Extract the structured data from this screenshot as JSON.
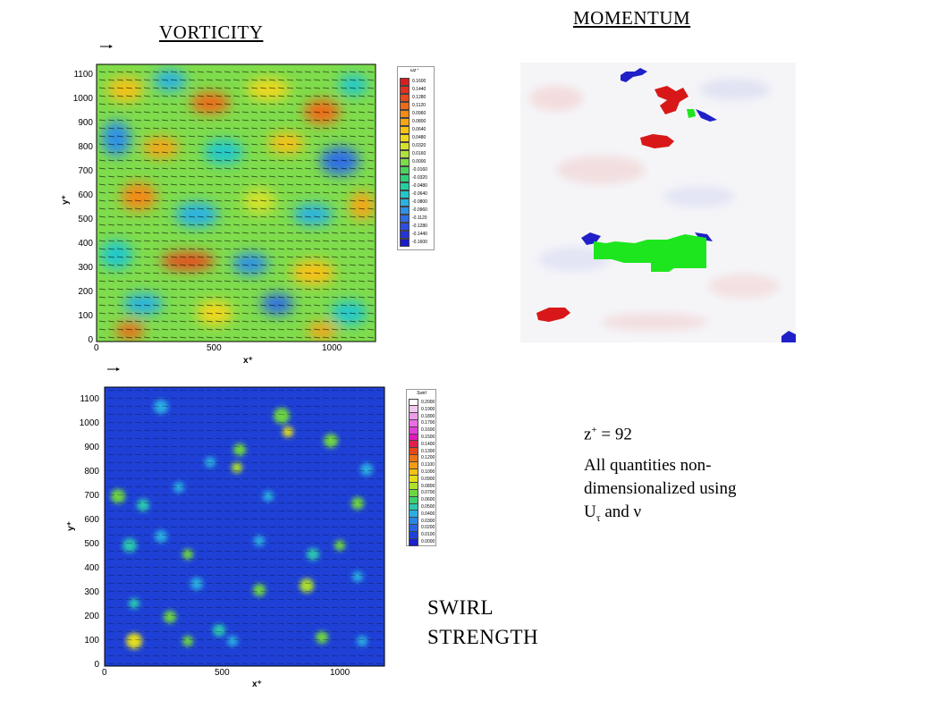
{
  "titles": {
    "vorticity": "VORTICITY",
    "momentum": "MOMENTUM",
    "swirl_line1": "SWIRL",
    "swirl_line2": "STRENGTH"
  },
  "notes": {
    "zplus": "z",
    "zplus_sup": "+",
    "zplus_value": " = 92",
    "line1": "All quantities non-",
    "line2": "dimensionalized using",
    "line3_u": "U",
    "line3_tau": "τ",
    "line3_rest": " and ν"
  },
  "vorticity_plot": {
    "xlabel": "x⁺",
    "ylabel": "y⁺",
    "xticks": [
      "0",
      "500",
      "1000"
    ],
    "yticks": [
      "0",
      "100",
      "200",
      "300",
      "400",
      "500",
      "600",
      "700",
      "800",
      "900",
      "1000",
      "1100"
    ],
    "legend_title": "ωz⁺",
    "legend_values": [
      "0.1600",
      "0.1440",
      "0.1280",
      "0.1120",
      "0.0960",
      "0.0800",
      "0.0640",
      "0.0480",
      "0.0320",
      "0.0160",
      "0.0000",
      "-0.0160",
      "-0.0320",
      "-0.0480",
      "-0.0640",
      "-0.0800",
      "-0.0960",
      "-0.1120",
      "-0.1280",
      "-0.1440",
      "-0.1600"
    ],
    "legend_colors": [
      "#d62020",
      "#e03020",
      "#e84a1c",
      "#ee6a18",
      "#f28a16",
      "#f6a614",
      "#f8c214",
      "#f2d81c",
      "#d6e22a",
      "#aee23a",
      "#7cdc4c",
      "#4ed25e",
      "#2ed07a",
      "#22d0a4",
      "#22c8cc",
      "#2ab2e2",
      "#2e90e6",
      "#2e6ee4",
      "#2c4ee0",
      "#2434d6",
      "#1a1cc8"
    ]
  },
  "swirl_plot": {
    "xlabel": "x⁺",
    "ylabel": "y⁺",
    "xticks": [
      "0",
      "500",
      "1000"
    ],
    "yticks": [
      "0",
      "100",
      "200",
      "300",
      "400",
      "500",
      "600",
      "700",
      "800",
      "900",
      "1000",
      "1100"
    ],
    "legend_title": "Swirl",
    "legend_values": [
      "0.2000",
      "0.1900",
      "0.1800",
      "0.1700",
      "0.1600",
      "0.1500",
      "0.1400",
      "0.1300",
      "0.1200",
      "0.1100",
      "0.1000",
      "0.0900",
      "0.0800",
      "0.0700",
      "0.0600",
      "0.0500",
      "0.0400",
      "0.0300",
      "0.0200",
      "0.0100",
      "0.0000"
    ],
    "legend_colors": [
      "#ffffff",
      "#f2c8f0",
      "#ee9cea",
      "#ea6ee4",
      "#e43ed8",
      "#e01ab8",
      "#e0204a",
      "#e44a18",
      "#ec7414",
      "#f49c14",
      "#f4c214",
      "#e2de1c",
      "#aee02c",
      "#6ed640",
      "#3cd06a",
      "#2ac8b0",
      "#2aaee2",
      "#2a86e4",
      "#2a62e0",
      "#2040d4",
      "#1a22c8"
    ]
  },
  "momentum_panel": {
    "description_colors": {
      "background": "#f4f4f7",
      "low": "#2020c8",
      "high": "#d81818",
      "green": "#1ee61e"
    }
  }
}
